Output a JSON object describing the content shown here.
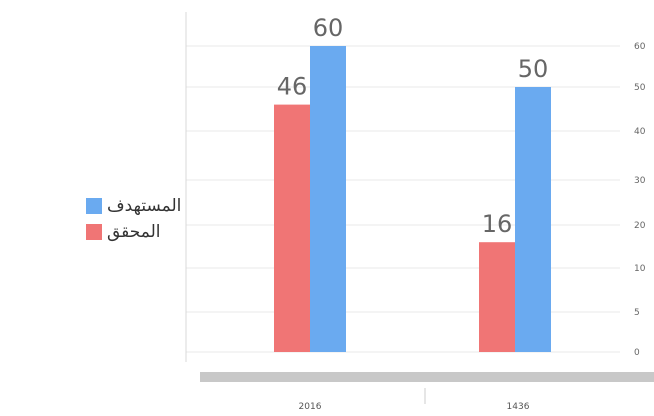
{
  "chart_data": {
    "type": "bar",
    "title": "",
    "xlabel": "",
    "ylabel": "",
    "categories": [
      "2016",
      "1436"
    ],
    "y_ticks": [
      0,
      5,
      10,
      20,
      30,
      40,
      50,
      60
    ],
    "ylim": [
      0,
      60
    ],
    "grid": true,
    "legend_position": "left",
    "series": [
      {
        "name": "المحقق",
        "values": [
          46,
          16
        ],
        "color": "#f07575"
      },
      {
        "name": "المستهدف",
        "values": [
          60,
          50
        ],
        "color": "#6aaaf0"
      }
    ],
    "axis_bar_color": "#c8c8c8"
  }
}
